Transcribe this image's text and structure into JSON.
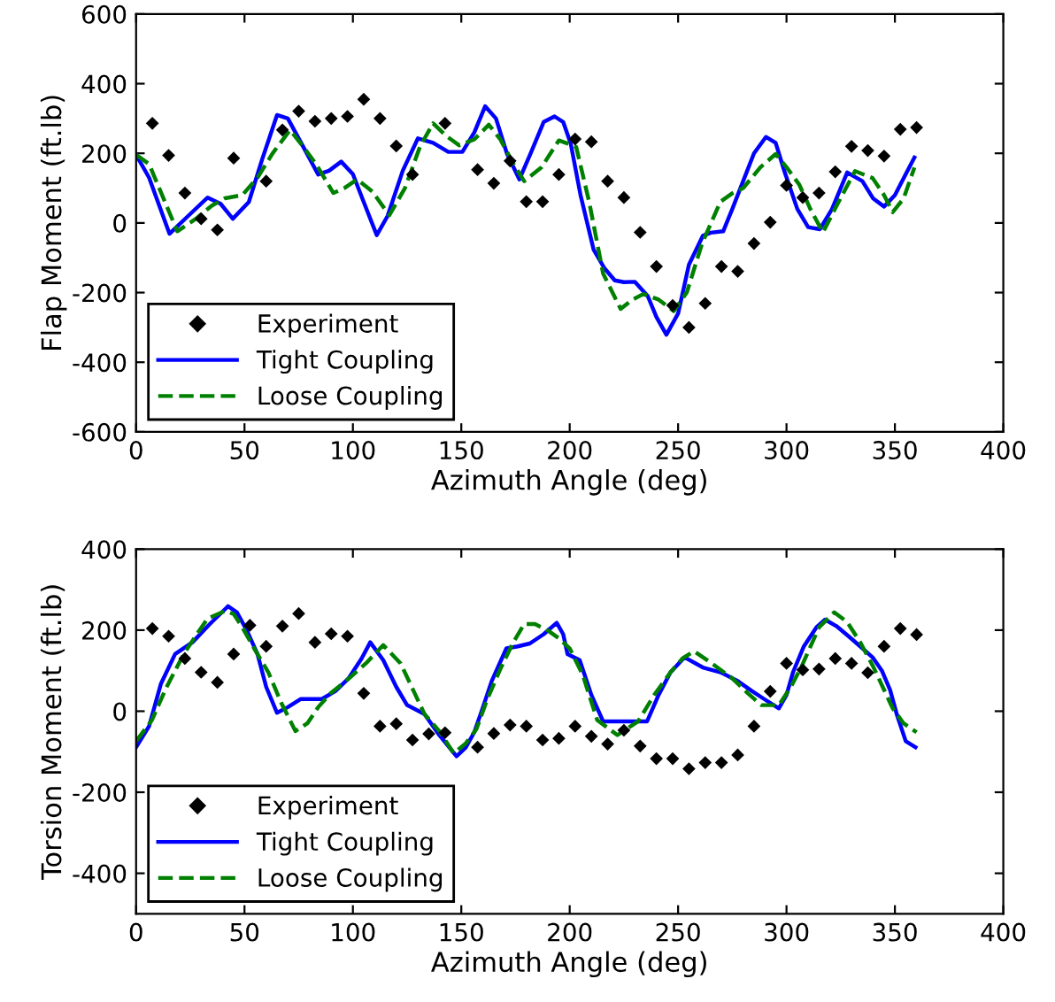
{
  "chart_data": [
    {
      "type": "line",
      "xlabel": "Azimuth Angle (deg)",
      "ylabel": "Flap Moment (ft.lb)",
      "xlim": [
        0,
        400
      ],
      "xticks": [
        0,
        50,
        100,
        150,
        200,
        250,
        300,
        350,
        400
      ],
      "ylim": [
        -600,
        600
      ],
      "yticks": [
        -600,
        -400,
        -200,
        0,
        200,
        400,
        600
      ],
      "grid": false,
      "legend": "bottom left",
      "series": [
        {
          "name": "Experiment",
          "type": "scatter",
          "color": "#000000",
          "marker": "diamond",
          "x": [
            7.5,
            15,
            22.5,
            30,
            37.5,
            45,
            60,
            67.5,
            75,
            82.5,
            90,
            97.5,
            105,
            112.5,
            120,
            127.5,
            142.5,
            157.5,
            165,
            172.5,
            180,
            187.5,
            195,
            202.5,
            210,
            217.5,
            225,
            232.5,
            240,
            247.5,
            255,
            262.5,
            270,
            277.5,
            285,
            292.5,
            300,
            307.5,
            315,
            322.5,
            330,
            337.5,
            345,
            352.5,
            360
          ],
          "values": [
            286,
            194,
            86,
            12,
            -20,
            186,
            120,
            267,
            321,
            292,
            300,
            306,
            355,
            300,
            221,
            139,
            286,
            153,
            114,
            178,
            61,
            61,
            139,
            241,
            233,
            120,
            73,
            -27,
            -125,
            -237,
            -300,
            -231,
            -125,
            -139,
            -59,
            2,
            108,
            73,
            86,
            147,
            220,
            208,
            192,
            269,
            274
          ]
        },
        {
          "name": "Tight Coupling",
          "color": "#0000ff",
          "line_style": "solid",
          "x": [
            0,
            6,
            15.4,
            24,
            33,
            39,
            44.6,
            52,
            58,
            65,
            70,
            77,
            84,
            89,
            94.6,
            100,
            105,
            111,
            116,
            123,
            130,
            137,
            144,
            150.5,
            156,
            161,
            166,
            171,
            176.8,
            182,
            188,
            193,
            197,
            200.5,
            205,
            211,
            216,
            220.8,
            225,
            230,
            236,
            240,
            244.6,
            250,
            255,
            261.4,
            265,
            270.8,
            275,
            280,
            285,
            290.5,
            295,
            299,
            305,
            310,
            315.4,
            321,
            328,
            335,
            340,
            345,
            350,
            355,
            359
          ],
          "values": [
            196,
            130,
            -31,
            20,
            73,
            55,
            12,
            60,
            180,
            310,
            300,
            220,
            139,
            150,
            176,
            140,
            60,
            -35,
            20,
            150,
            243,
            230,
            204,
            204,
            260,
            335,
            300,
            200,
            125,
            200,
            290,
            306,
            290,
            227,
            80,
            -76,
            -130,
            -165,
            -170,
            -169,
            -210,
            -270,
            -321,
            -260,
            -120,
            -37,
            -28,
            -24,
            40,
            120,
            200,
            247,
            230,
            149,
            40,
            -12,
            -18,
            40,
            145,
            120,
            70,
            47,
            80,
            140,
            188
          ]
        },
        {
          "name": "Loose Coupling",
          "color": "#008000",
          "line_style": "dashed",
          "x": [
            0,
            6,
            12,
            19,
            27.6,
            35,
            41,
            49,
            56,
            63,
            71,
            77,
            83,
            91,
            96,
            102,
            109,
            116.8,
            124,
            131,
            137,
            143,
            149,
            156,
            162.7,
            168,
            174,
            179,
            187,
            195,
            199,
            203,
            209,
            215.4,
            223.5,
            229,
            234,
            241,
            248,
            254,
            261,
            269.5,
            275,
            280,
            288,
            295,
            300,
            305.9,
            311,
            316.8,
            324,
            331.6,
            339.7,
            345,
            349,
            354,
            359
          ],
          "values": [
            196,
            169,
            80,
            -24,
            12,
            50,
            71,
            80,
            130,
            200,
            267,
            220,
            169,
            86,
            100,
            125,
            90,
            22,
            100,
            220,
            286,
            250,
            223,
            240,
            282,
            240,
            170,
            120,
            160,
            237,
            228,
            218,
            60,
            -145,
            -247,
            -220,
            -204,
            -220,
            -253,
            -200,
            -60,
            61,
            85,
            100,
            160,
            198,
            160,
            110,
            40,
            -27,
            60,
            149,
            129,
            80,
            31,
            70,
            159
          ]
        }
      ]
    },
    {
      "type": "line",
      "xlabel": "Azimuth Angle (deg)",
      "ylabel": "Torsion Moment (ft.lb)",
      "xlim": [
        0,
        400
      ],
      "xticks": [
        0,
        50,
        100,
        150,
        200,
        250,
        300,
        350,
        400
      ],
      "ylim": [
        -500,
        400
      ],
      "yticks": [
        -400,
        -200,
        0,
        200,
        400
      ],
      "grid": false,
      "legend": "bottom left",
      "series": [
        {
          "name": "Experiment",
          "type": "scatter",
          "color": "#000000",
          "marker": "diamond",
          "x": [
            7.5,
            15,
            22.5,
            30,
            37.5,
            45,
            52.5,
            60,
            67.5,
            75,
            82.5,
            90,
            97.5,
            105,
            112.5,
            120,
            127.5,
            135,
            142.5,
            157.5,
            165,
            172.5,
            180,
            187.5,
            195,
            202.5,
            210,
            217.5,
            225,
            232.5,
            240,
            247.5,
            255,
            262.5,
            270,
            277.5,
            285,
            292.5,
            300,
            307.5,
            315,
            322.5,
            330,
            337.5,
            345,
            352.5,
            360
          ],
          "values": [
            204,
            185,
            130,
            96,
            71,
            141,
            212,
            160,
            210,
            241,
            170,
            191,
            185,
            44,
            -37,
            -31,
            -71,
            -56,
            -53,
            -89,
            -55,
            -34,
            -37,
            -71,
            -67,
            -37,
            -62,
            -81,
            -47,
            -86,
            -117,
            -117,
            -142,
            -127,
            -127,
            -108,
            -37,
            49,
            118,
            102,
            104,
            130,
            118,
            95,
            160,
            204,
            189
          ]
        },
        {
          "name": "Tight Coupling",
          "color": "#0000ff",
          "line_style": "solid",
          "x": [
            0,
            6,
            11.4,
            18,
            26,
            34,
            42.4,
            46.5,
            51,
            56,
            60,
            65,
            70,
            76,
            85.7,
            92,
            98,
            104,
            108,
            114,
            120,
            125,
            133,
            140,
            147.8,
            152,
            156,
            160,
            164,
            170.8,
            176,
            181.6,
            188,
            194,
            197,
            199,
            204.6,
            210,
            215.4,
            226,
            235.7,
            241,
            246.5,
            253,
            261.4,
            270,
            277.6,
            284,
            289.7,
            296.5,
            300,
            303,
            308,
            313.8,
            317.8,
            323,
            328.6,
            334,
            339.7,
            344,
            347.8,
            351,
            355,
            359.5
          ],
          "values": [
            -89,
            -37,
            67,
            141,
            170,
            215,
            259,
            244,
            200,
            141,
            60,
            -4,
            10,
            30,
            30,
            50,
            81,
            130,
            170,
            126,
            60,
            15,
            -7,
            -60,
            -111,
            -90,
            -52,
            10,
            74,
            155,
            160,
            167,
            190,
            218,
            190,
            141,
            126,
            40,
            -25,
            -25,
            -25,
            40,
            96,
            133,
            108,
            95,
            74,
            50,
            30,
            7,
            40,
            96,
            160,
            207,
            226,
            210,
            185,
            160,
            133,
            100,
            52,
            -10,
            -74,
            -89
          ]
        },
        {
          "name": "Loose Coupling",
          "color": "#008000",
          "line_style": "dashed",
          "x": [
            0,
            7.3,
            14,
            22,
            28,
            33,
            41,
            45,
            49,
            55,
            61,
            67,
            73.5,
            79,
            84,
            89.7,
            98,
            106,
            114,
            122,
            128,
            133,
            140,
            146.5,
            152,
            157,
            162,
            168,
            174,
            179,
            184,
            189.7,
            195,
            200,
            206,
            212.7,
            222,
            231.6,
            239,
            246.5,
            252,
            257.3,
            265,
            275,
            282,
            288.4,
            296.5,
            302,
            307,
            315,
            322,
            328,
            334,
            340,
            349,
            354,
            360
          ],
          "values": [
            -74,
            -22,
            59,
            141,
            190,
            229,
            247,
            240,
            207,
            150,
            96,
            20,
            -49,
            -30,
            10,
            44,
            80,
            118,
            163,
            118,
            50,
            -7,
            -50,
            -104,
            -80,
            -44,
            30,
            104,
            170,
            215,
            215,
            200,
            180,
            155,
            90,
            -22,
            -59,
            -25,
            40,
            96,
            130,
            148,
            120,
            81,
            45,
            15,
            15,
            60,
            111,
            207,
            244,
            220,
            170,
            110,
            7,
            -30,
            -52
          ]
        }
      ]
    }
  ]
}
